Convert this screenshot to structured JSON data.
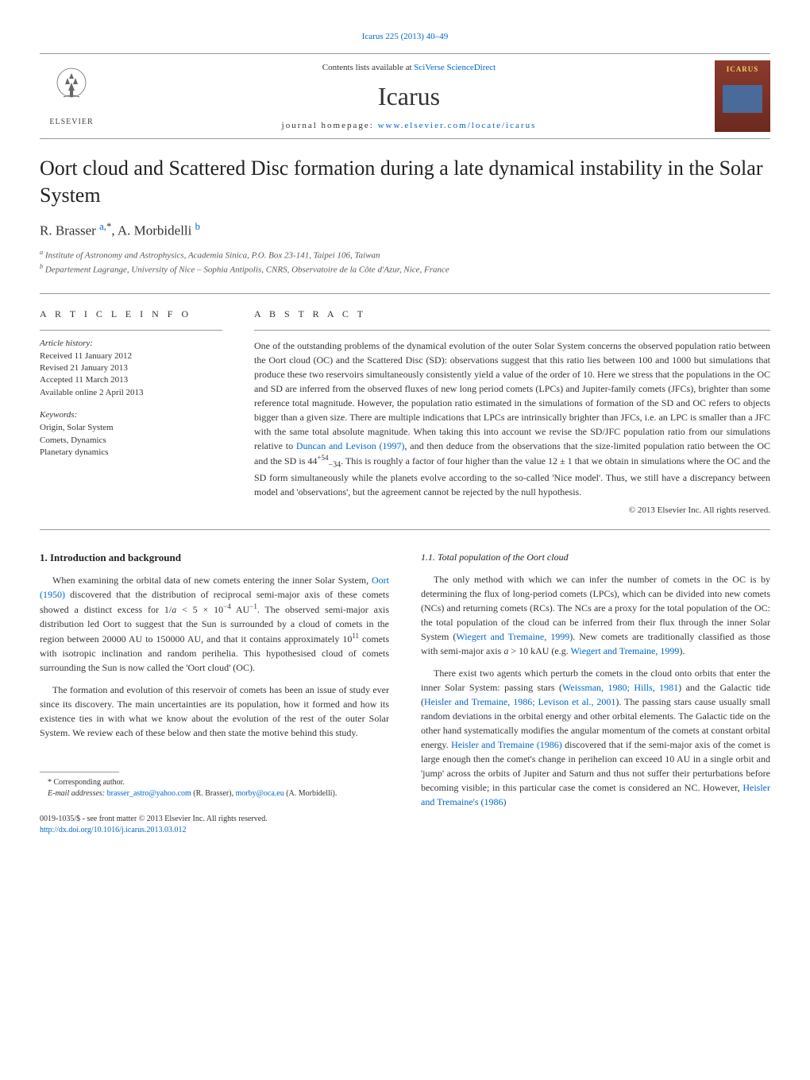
{
  "journal_ref": "Icarus 225 (2013) 40–49",
  "header": {
    "publisher": "ELSEVIER",
    "contents_prefix": "Contents lists available at ",
    "contents_link": "SciVerse ScienceDirect",
    "journal_name": "Icarus",
    "homepage_prefix": "journal homepage: ",
    "homepage_link": "www.elsevier.com/locate/icarus",
    "cover_title": "ICARUS"
  },
  "title": "Oort cloud and Scattered Disc formation during a late dynamical instability in the Solar System",
  "authors_html": "R. Brasser <sup><a class='author-link'>a,</a>*</sup>, A. Morbidelli <sup><a class='author-link'>b</a></sup>",
  "affiliations": [
    "a Institute of Astronomy and Astrophysics, Academia Sinica, P.O. Box 23-141, Taipei 106, Taiwan",
    "b Departement Lagrange, University of Nice – Sophia Antipolis, CNRS, Observatoire de la Côte d'Azur, Nice, France"
  ],
  "article_info": {
    "heading": "A R T I C L E   I N F O",
    "history_label": "Article history:",
    "history": [
      "Received 11 January 2012",
      "Revised 21 January 2013",
      "Accepted 11 March 2013",
      "Available online 2 April 2013"
    ],
    "keywords_label": "Keywords:",
    "keywords": [
      "Origin, Solar System",
      "Comets, Dynamics",
      "Planetary dynamics"
    ]
  },
  "abstract": {
    "heading": "A B S T R A C T",
    "text_html": "One of the outstanding problems of the dynamical evolution of the outer Solar System concerns the observed population ratio between the Oort cloud (OC) and the Scattered Disc (SD): observations suggest that this ratio lies between 100 and 1000 but simulations that produce these two reservoirs simultaneously consistently yield a value of the order of 10. Here we stress that the populations in the OC and SD are inferred from the observed fluxes of new long period comets (LPCs) and Jupiter-family comets (JFCs), brighter than some reference total magnitude. However, the population ratio estimated in the simulations of formation of the SD and OC refers to objects bigger than a given size. There are multiple indications that LPCs are intrinsically brighter than JFCs, i.e. an LPC is smaller than a JFC with the same total absolute magnitude. When taking this into account we revise the SD/JFC population ratio from our simulations relative to <span class='link'>Duncan and Levison (1997)</span>, and then deduce from the observations that the size-limited population ratio between the OC and the SD is 44<sup>+54</sup><sub>−34</sub>. This is roughly a factor of four higher than the value 12 ± 1 that we obtain in simulations where the OC and the SD form simultaneously while the planets evolve according to the so-called 'Nice model'. Thus, we still have a discrepancy between model and 'observations', but the agreement cannot be rejected by the null hypothesis.",
    "copyright": "© 2013 Elsevier Inc. All rights reserved."
  },
  "body": {
    "section1_heading": "1. Introduction and background",
    "section1_p1_html": "When examining the orbital data of new comets entering the inner Solar System, <span class='link'>Oort (1950)</span> discovered that the distribution of reciprocal semi-major axis of these comets showed a distinct excess for 1/<i>a</i> < 5 × 10<sup>−4</sup> AU<sup>−1</sup>. The observed semi-major axis distribution led Oort to suggest that the Sun is surrounded by a cloud of comets in the region between 20000 AU to 150000 AU, and that it contains approximately 10<sup>11</sup> comets with isotropic inclination and random perihelia. This hypothesised cloud of comets surrounding the Sun is now called the 'Oort cloud' (OC).",
    "section1_p2": "The formation and evolution of this reservoir of comets has been an issue of study ever since its discovery. The main uncertainties are its population, how it formed and how its existence ties in with what we know about the evolution of the rest of the outer Solar System. We review each of these below and then state the motive behind this study.",
    "section11_heading": "1.1. Total population of the Oort cloud",
    "section11_p1_html": "The only method with which we can infer the number of comets in the OC is by determining the flux of long-period comets (LPCs), which can be divided into new comets (NCs) and returning comets (RCs). The NCs are a proxy for the total population of the OC: the total population of the cloud can be inferred from their flux through the inner Solar System (<span class='link'>Wiegert and Tremaine, 1999</span>). New comets are traditionally classified as those with semi-major axis <i>a</i> > 10 kAU (e.g. <span class='link'>Wiegert and Tremaine, 1999</span>).",
    "section11_p2_html": "There exist two agents which perturb the comets in the cloud onto orbits that enter the inner Solar System: passing stars (<span class='link'>Weissman, 1980; Hills, 1981</span>) and the Galactic tide (<span class='link'>Heisler and Tremaine, 1986; Levison et al., 2001</span>). The passing stars cause usually small random deviations in the orbital energy and other orbital elements. The Galactic tide on the other hand systematically modifies the angular momentum of the comets at constant orbital energy. <span class='link'>Heisler and Tremaine (1986)</span> discovered that if the semi-major axis of the comet is large enough then the comet's change in perihelion can exceed 10 AU in a single orbit and 'jump' across the orbits of Jupiter and Saturn and thus not suffer their perturbations before becoming visible; in this particular case the comet is considered an NC. However, <span class='link'>Heisler and Tremaine's (1986)</span>"
  },
  "footnotes": {
    "corresponding": "* Corresponding author.",
    "emails_html": "<i>E-mail addresses:</i> <span class='link'>brasser_astro@yahoo.com</span> (R. Brasser), <span class='link'>morby@oca.eu</span> (A. Morbidelli)."
  },
  "footer": {
    "line1": "0019-1035/$ - see front matter © 2013 Elsevier Inc. All rights reserved.",
    "doi": "http://dx.doi.org/10.1016/j.icarus.2013.03.012"
  }
}
